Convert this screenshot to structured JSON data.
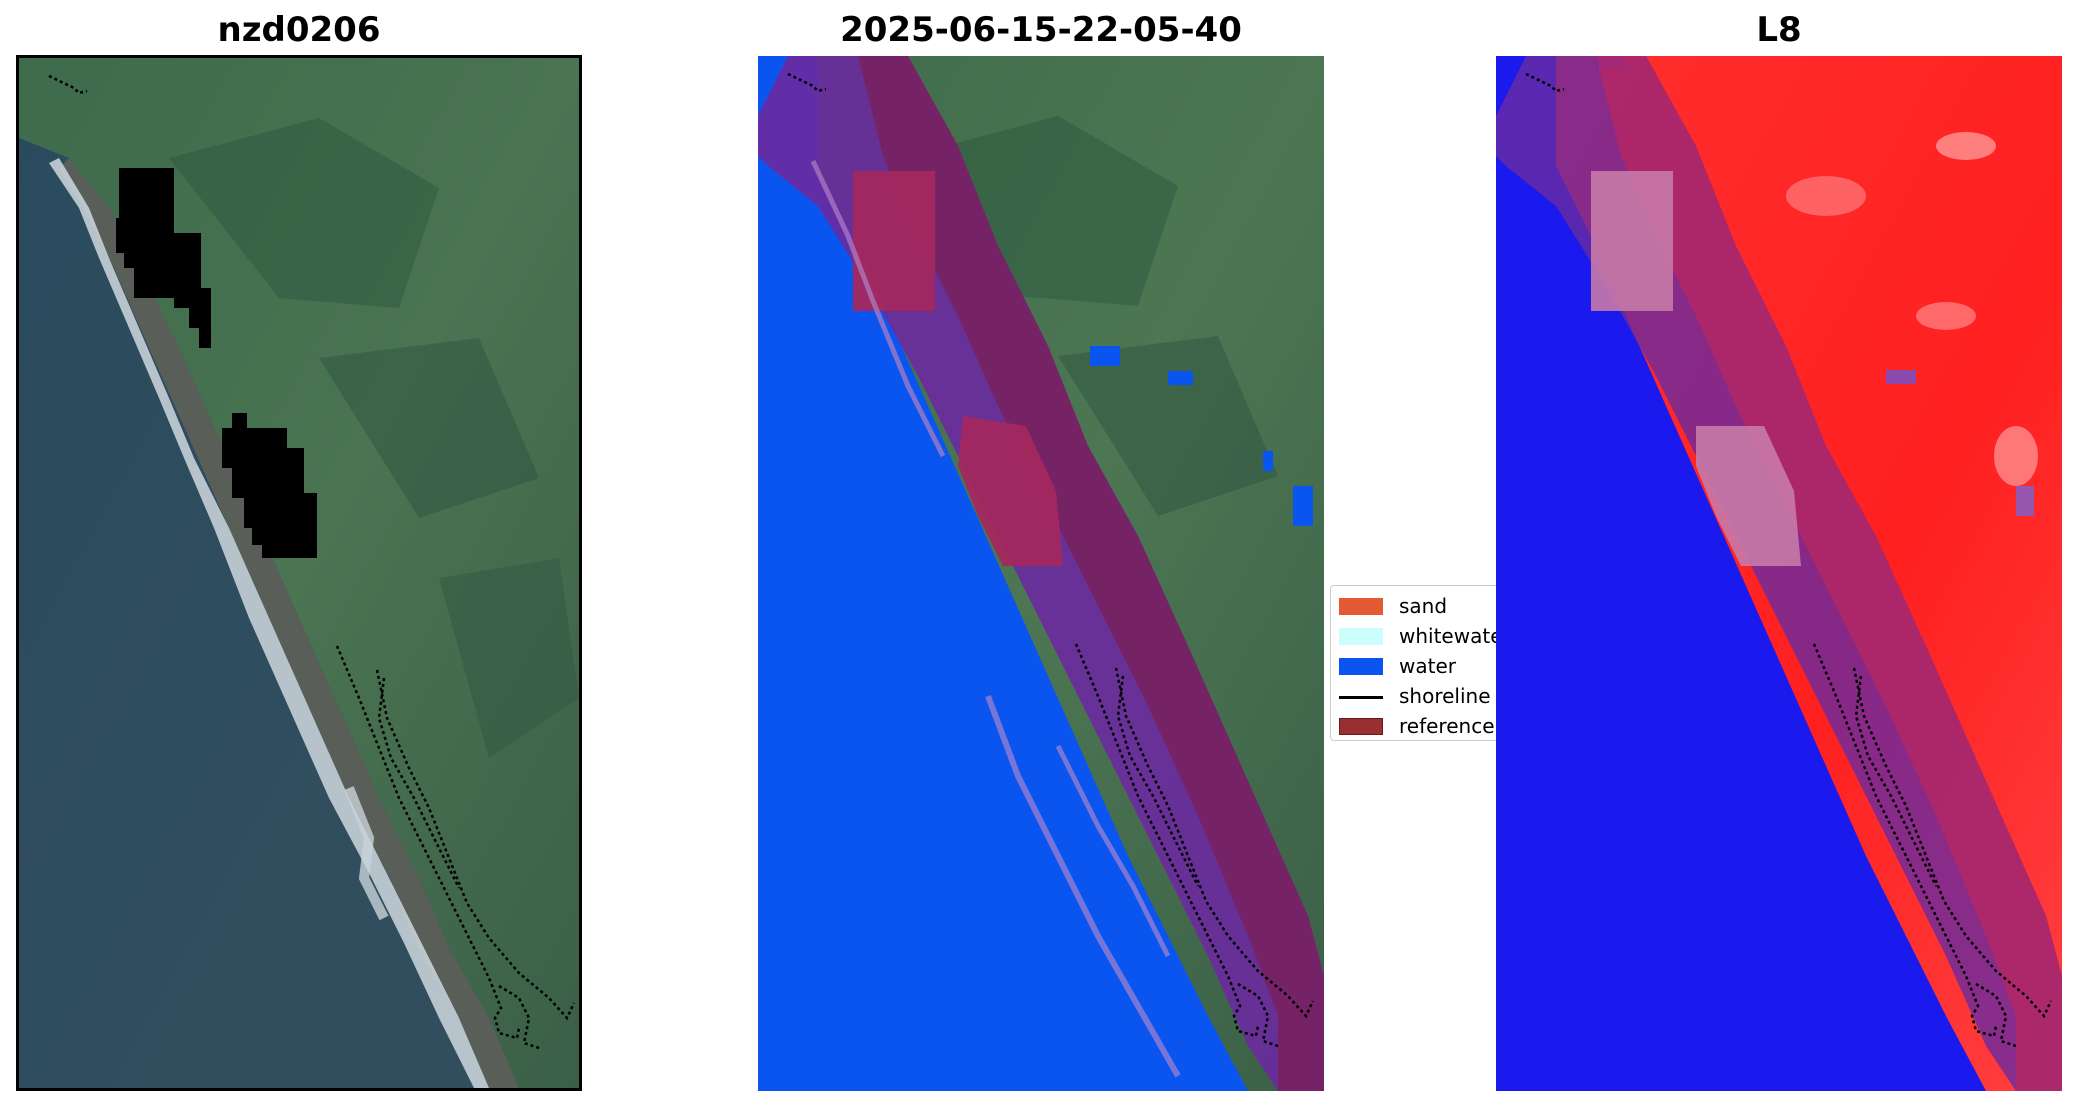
{
  "panels": [
    {
      "title": "nzd0206"
    },
    {
      "title": "2025-06-15-22-05-40"
    },
    {
      "title": "L8"
    }
  ],
  "legend": {
    "items": [
      {
        "label": "sand",
        "color": "#e35a35",
        "kind": "patch"
      },
      {
        "label": "whitewater",
        "color": "#ccfefe",
        "kind": "patch"
      },
      {
        "label": "water",
        "color": "#0a55f0",
        "kind": "patch"
      },
      {
        "label": "shoreline",
        "color": "#000000",
        "kind": "line"
      },
      {
        "label": "reference",
        "color": "#9b2f2f",
        "kind": "patch"
      }
    ]
  },
  "colors": {
    "ocean": "#2d4f63",
    "land": "#3f6a4a",
    "water_class": "#0a55f0",
    "buffer_overlay": "#7b1f55",
    "index_red": "#ff2a2a",
    "index_blue": "#1a1aee"
  }
}
